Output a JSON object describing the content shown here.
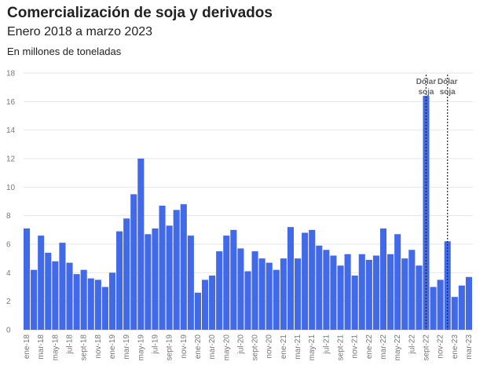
{
  "chart_data": {
    "type": "bar",
    "title": "Comercialización de soja y derivados",
    "subtitle": "Enero 2018 a marzo 2023",
    "ylabel": "En millones de toneladas",
    "ylim": [
      0,
      18
    ],
    "yticks": [
      0,
      2,
      4,
      6,
      8,
      10,
      12,
      14,
      16,
      18
    ],
    "grid": true,
    "color": "#4169e8",
    "categories": [
      "ene-18",
      "feb-18",
      "mar-18",
      "abr-18",
      "may-18",
      "jun-18",
      "jul-18",
      "ago-18",
      "sept-18",
      "oct-18",
      "nov-18",
      "dic-18",
      "ene-19",
      "feb-19",
      "mar-19",
      "abr-19",
      "may-19",
      "jun-19",
      "jul-19",
      "ago-19",
      "sept-19",
      "oct-19",
      "nov-19",
      "dic-19",
      "ene-20",
      "feb-20",
      "mar-20",
      "abr-20",
      "may-20",
      "jun-20",
      "jul-20",
      "ago-20",
      "sept-20",
      "oct-20",
      "nov-20",
      "dic-20",
      "ene-21",
      "feb-21",
      "mar-21",
      "abr-21",
      "may-21",
      "jun-21",
      "jul-21",
      "ago-21",
      "sept-21",
      "oct-21",
      "nov-21",
      "dic-21",
      "ene-22",
      "feb-22",
      "mar-22",
      "abr-22",
      "may-22",
      "jun-22",
      "jul-22",
      "ago-22",
      "sept-22",
      "oct-22",
      "nov-22",
      "dic-22",
      "ene-23",
      "feb-23",
      "mar-23"
    ],
    "tick_labels": [
      "ene-18",
      "mar-18",
      "may-18",
      "jul-18",
      "sept-18",
      "nov-18",
      "ene-19",
      "mar-19",
      "may-19",
      "jul-19",
      "sept-19",
      "nov-19",
      "ene-20",
      "mar-20",
      "may-20",
      "jul-20",
      "sept-20",
      "nov-20",
      "ene-21",
      "mar-21",
      "may-21",
      "jul-21",
      "sept-21",
      "nov-21",
      "ene-22",
      "mar-22",
      "may-22",
      "jul-22",
      "sept-22",
      "nov-22",
      "ene-23",
      "mar-23"
    ],
    "values": [
      7.1,
      4.2,
      6.6,
      5.4,
      4.8,
      6.1,
      4.7,
      3.9,
      4.2,
      3.6,
      3.5,
      3.0,
      4.0,
      6.9,
      7.8,
      9.5,
      12.0,
      6.7,
      7.1,
      8.7,
      7.3,
      8.4,
      8.8,
      6.6,
      2.6,
      3.5,
      3.8,
      5.5,
      6.6,
      7.0,
      5.7,
      4.1,
      5.5,
      5.0,
      4.7,
      4.2,
      5.0,
      7.2,
      5.0,
      6.8,
      7.0,
      5.9,
      5.6,
      5.2,
      4.5,
      5.3,
      3.8,
      5.3,
      4.9,
      5.2,
      7.1,
      5.3,
      6.7,
      5.0,
      5.6,
      4.5,
      16.4,
      3.0,
      3.5,
      6.2,
      2.3,
      3.1,
      3.7
    ],
    "annotations": [
      {
        "label_line1": "Dólar",
        "label_line2": "soja",
        "category": "sept-22"
      },
      {
        "label_line1": "Dólar",
        "label_line2": "soja",
        "category": "dic-22"
      }
    ]
  }
}
